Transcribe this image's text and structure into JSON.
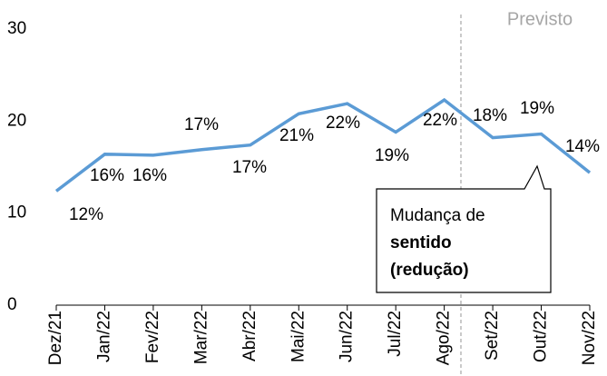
{
  "chart_data": {
    "type": "line",
    "categories": [
      "Dez/21",
      "Jan/22",
      "Fev/22",
      "Mar/22",
      "Abr/22",
      "Mai/22",
      "Jun/22",
      "Jul/22",
      "Ago/22",
      "Set/22",
      "Out/22",
      "Nov/22"
    ],
    "series": [
      {
        "color": "#5b9bd5",
        "values": [
          12.4,
          16.4,
          16.3,
          16.9,
          17.4,
          20.8,
          21.9,
          18.8,
          22.3,
          18.2,
          18.6,
          14.4
        ],
        "value_labels": [
          "12%",
          "16%",
          "16%",
          "17%",
          "17%",
          "21%",
          "22%",
          "19%",
          "22%",
          "18%",
          "19%",
          "14%"
        ]
      }
    ],
    "ylim": [
      0,
      30
    ],
    "yticks": [
      0,
      10,
      20,
      30
    ],
    "forecast_label": "Previsto",
    "callout": [
      "Mudança de",
      "sentido",
      "(redução)"
    ]
  }
}
